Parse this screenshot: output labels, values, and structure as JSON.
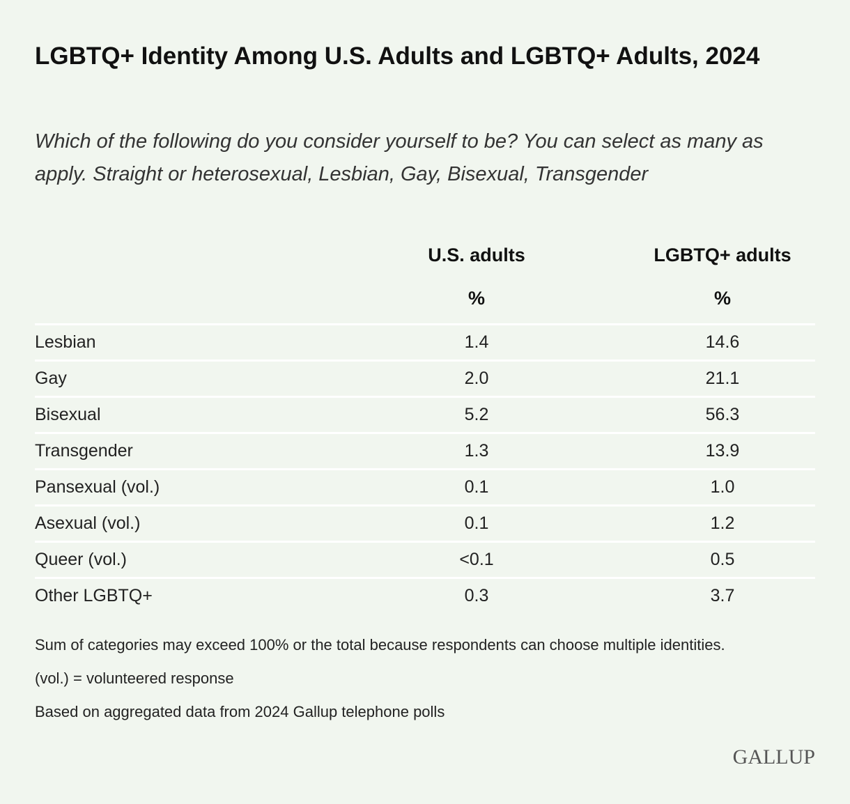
{
  "header": {
    "title": "LGBTQ+ Identity Among U.S. Adults and LGBTQ+ Adults, 2024",
    "subtitle": "Which of the following do you consider yourself to be? You can select as many as apply. Straight or heterosexual, Lesbian, Gay, Bisexual, Transgender"
  },
  "table": {
    "columns": [
      "U.S. adults",
      "LGBTQ+ adults"
    ],
    "units": [
      "%",
      "%"
    ],
    "rows": [
      [
        "Lesbian",
        "1.4",
        "14.6"
      ],
      [
        "Gay",
        "2.0",
        "21.1"
      ],
      [
        "Bisexual",
        "5.2",
        "56.3"
      ],
      [
        "Transgender",
        "1.3",
        "13.9"
      ],
      [
        "Pansexual (vol.)",
        "0.1",
        "1.0"
      ],
      [
        "Asexual (vol.)",
        "0.1",
        "1.2"
      ],
      [
        "Queer (vol.)",
        "<0.1",
        "0.5"
      ],
      [
        "Other LGBTQ+",
        "0.3",
        "3.7"
      ]
    ]
  },
  "notes": [
    "Sum of categories may exceed 100% or the total because respondents can choose multiple identities.",
    "(vol.) = volunteered response",
    "Based on aggregated data from 2024 Gallup telephone polls"
  ],
  "logo": "GALLUP"
}
